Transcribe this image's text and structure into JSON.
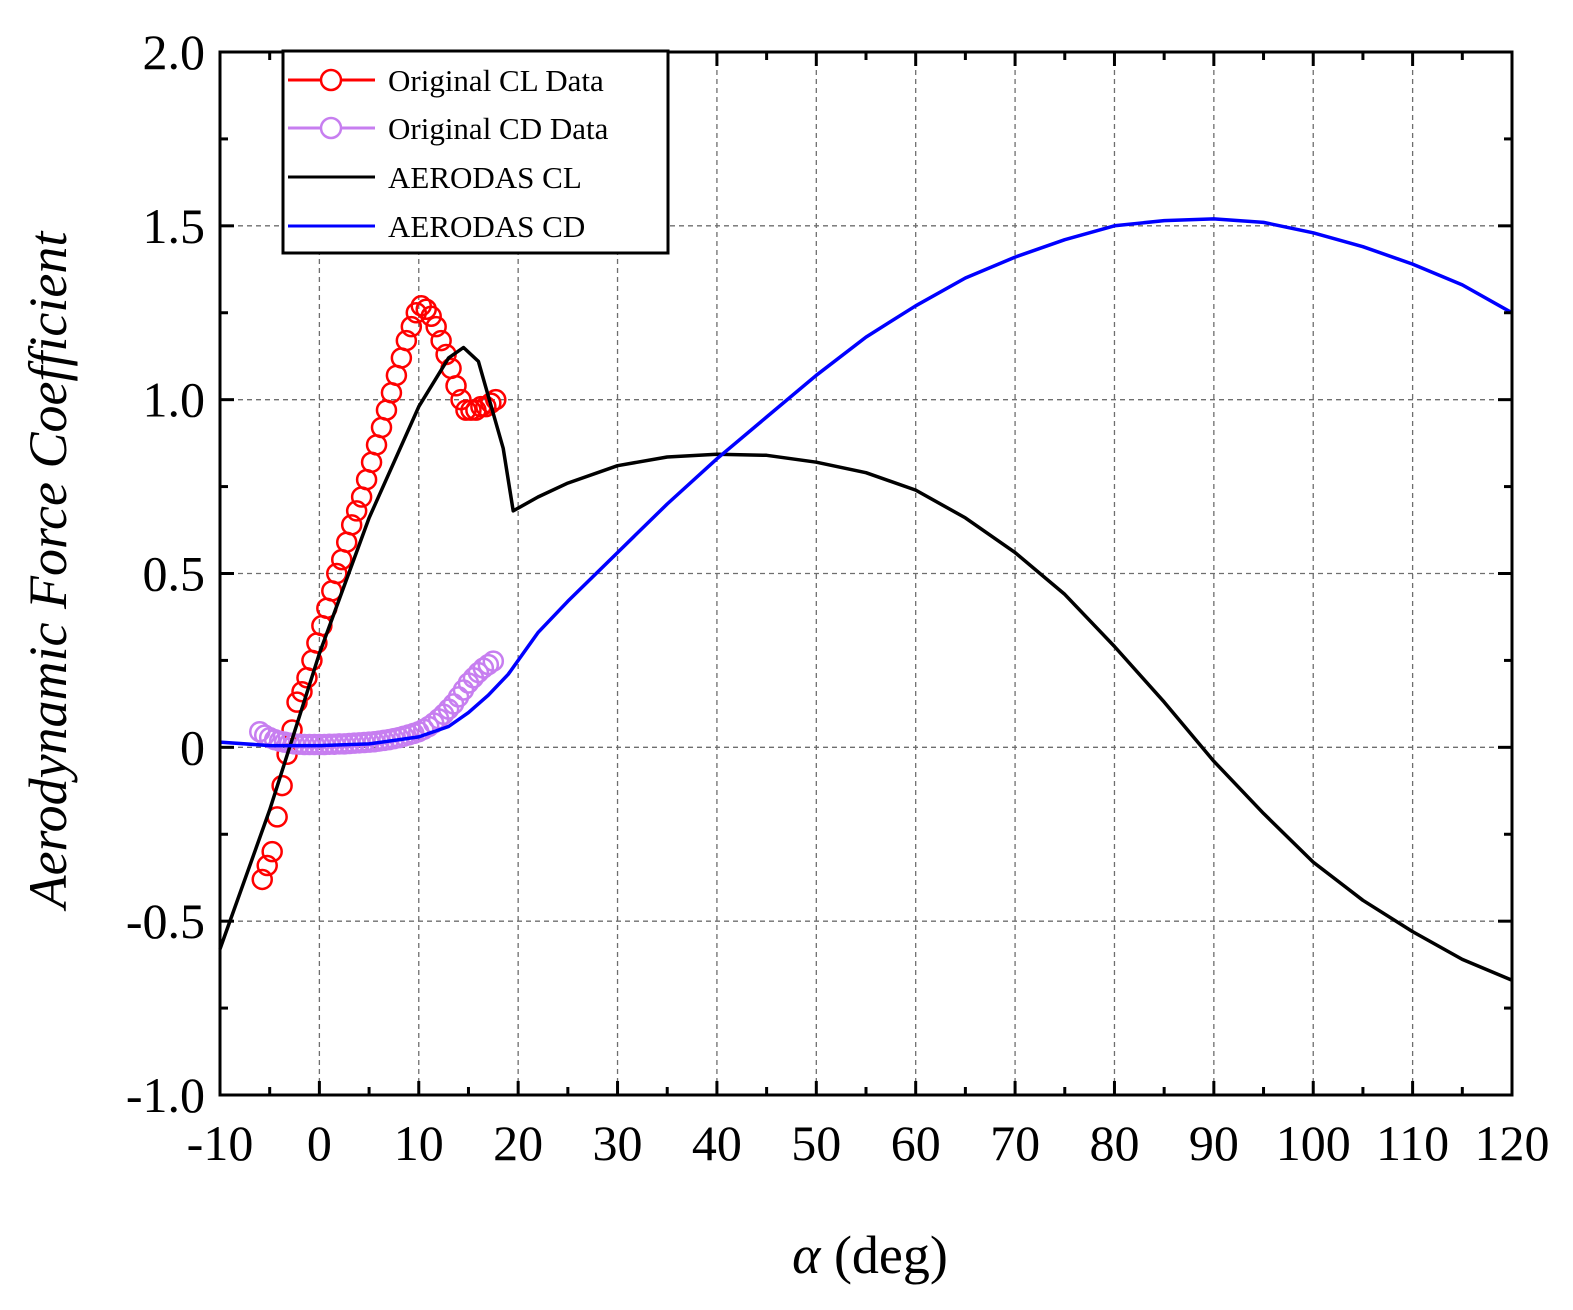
{
  "chart_data": {
    "type": "line",
    "xlabel_symbol": "α",
    "xlabel_unit": " (deg)",
    "ylabel": "Aerodynamic Force Coefficient",
    "xlim": [
      -10,
      120
    ],
    "ylim": [
      -1.0,
      2.0
    ],
    "x_ticks": [
      -10,
      0,
      10,
      20,
      30,
      40,
      50,
      60,
      70,
      80,
      90,
      100,
      110,
      120
    ],
    "x_tick_labels": [
      "-10",
      "0",
      "10",
      "20",
      "30",
      "40",
      "50",
      "60",
      "70",
      "80",
      "90",
      "100",
      "110",
      "120"
    ],
    "y_ticks": [
      -1.0,
      -0.5,
      0,
      0.5,
      1.0,
      1.5,
      2.0
    ],
    "y_tick_labels": [
      "-1.0",
      "-0.5",
      "0",
      "0.5",
      "1.0",
      "1.5",
      "2.0"
    ],
    "grid": true,
    "legend_position": "top-left",
    "series": [
      {
        "name": "Original CL Data",
        "style": "markers",
        "color": "#ff0000",
        "x": [
          -5.75,
          -5.25,
          -4.75,
          -4.25,
          -3.75,
          -3.25,
          -2.75,
          -2.25,
          -1.75,
          -1.25,
          -0.75,
          -0.25,
          0.25,
          0.75,
          1.25,
          1.75,
          2.25,
          2.75,
          3.25,
          3.75,
          4.25,
          4.75,
          5.25,
          5.75,
          6.25,
          6.75,
          7.25,
          7.75,
          8.25,
          8.75,
          9.25,
          9.75,
          10.25,
          10.75,
          11.25,
          11.75,
          12.25,
          12.75,
          13.25,
          13.75,
          14.25,
          14.75,
          15.25,
          15.75,
          16.25,
          16.75,
          17.25,
          17.75
        ],
        "y": [
          -0.38,
          -0.34,
          -0.3,
          -0.2,
          -0.11,
          -0.02,
          0.05,
          0.13,
          0.16,
          0.2,
          0.25,
          0.3,
          0.35,
          0.4,
          0.45,
          0.5,
          0.54,
          0.59,
          0.64,
          0.68,
          0.72,
          0.77,
          0.82,
          0.87,
          0.92,
          0.97,
          1.02,
          1.07,
          1.12,
          1.17,
          1.21,
          1.25,
          1.27,
          1.26,
          1.24,
          1.21,
          1.17,
          1.13,
          1.09,
          1.04,
          1.0,
          0.97,
          0.97,
          0.97,
          0.98,
          0.98,
          0.99,
          1.0
        ]
      },
      {
        "name": "Original CD Data",
        "style": "markers",
        "color": "#c77ef0",
        "x": [
          -6.0,
          -5.5,
          -5.0,
          -4.5,
          -4.0,
          -3.5,
          -3.0,
          -2.5,
          -2.0,
          -1.5,
          -1.0,
          -0.5,
          0.0,
          0.5,
          1.0,
          1.5,
          2.0,
          2.5,
          3.0,
          3.5,
          4.0,
          4.5,
          5.0,
          5.5,
          6.0,
          6.5,
          7.0,
          7.5,
          8.0,
          8.5,
          9.0,
          9.5,
          10.0,
          10.5,
          11.0,
          11.5,
          12.0,
          12.5,
          13.0,
          13.5,
          14.0,
          14.5,
          15.0,
          15.5,
          16.0,
          16.5,
          17.0,
          17.5
        ],
        "y": [
          0.045,
          0.035,
          0.028,
          0.022,
          0.018,
          0.015,
          0.012,
          0.01,
          0.009,
          0.008,
          0.008,
          0.008,
          0.008,
          0.008,
          0.009,
          0.009,
          0.01,
          0.01,
          0.011,
          0.012,
          0.013,
          0.014,
          0.015,
          0.016,
          0.018,
          0.02,
          0.022,
          0.025,
          0.028,
          0.032,
          0.036,
          0.04,
          0.045,
          0.052,
          0.06,
          0.07,
          0.082,
          0.095,
          0.11,
          0.125,
          0.145,
          0.165,
          0.185,
          0.2,
          0.215,
          0.228,
          0.238,
          0.248
        ]
      },
      {
        "name": "AERODAS CL",
        "style": "line",
        "color": "#000000",
        "x": [
          -10,
          -5,
          0,
          5,
          10,
          13,
          14.5,
          16,
          18.5,
          19.5,
          22,
          25,
          30,
          35,
          40,
          45,
          50,
          55,
          60,
          65,
          70,
          75,
          80,
          85,
          90,
          95,
          100,
          105,
          110,
          115,
          120
        ],
        "y": [
          -0.58,
          -0.18,
          0.27,
          0.66,
          0.98,
          1.12,
          1.15,
          1.11,
          0.86,
          0.68,
          0.72,
          0.76,
          0.81,
          0.835,
          0.843,
          0.84,
          0.82,
          0.79,
          0.74,
          0.66,
          0.56,
          0.44,
          0.29,
          0.13,
          -0.04,
          -0.19,
          -0.33,
          -0.44,
          -0.53,
          -0.61,
          -0.67
        ]
      },
      {
        "name": "AERODAS CD",
        "style": "line",
        "color": "#0000ff",
        "x": [
          -10,
          -5,
          0,
          5,
          10,
          13,
          15,
          17,
          19,
          22,
          25,
          30,
          35,
          40,
          45,
          50,
          55,
          60,
          65,
          70,
          75,
          80,
          85,
          90,
          95,
          100,
          105,
          110,
          115,
          120
        ],
        "y": [
          0.015,
          0.005,
          0.005,
          0.01,
          0.03,
          0.06,
          0.1,
          0.15,
          0.21,
          0.33,
          0.42,
          0.56,
          0.7,
          0.83,
          0.95,
          1.07,
          1.18,
          1.27,
          1.35,
          1.41,
          1.46,
          1.5,
          1.515,
          1.52,
          1.51,
          1.48,
          1.44,
          1.39,
          1.33,
          1.25
        ]
      }
    ]
  }
}
